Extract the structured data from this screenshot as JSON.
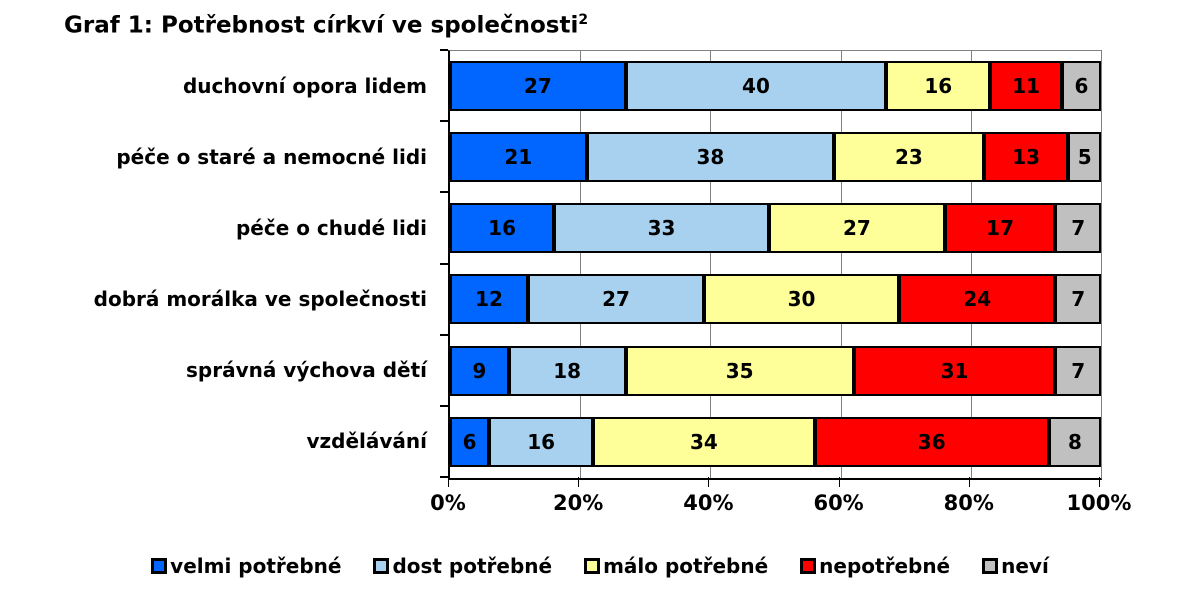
{
  "title": {
    "text": "Graf 1: Potřebnost církví ve společnosti",
    "superscript": "2"
  },
  "chart_data": {
    "type": "bar",
    "orientation": "horizontal",
    "stacked": true,
    "unit": "%",
    "title": "Graf 1: Potřebnost církví ve společnosti",
    "categories": [
      "duchovní opora lidem",
      "péče o staré a nemocné lidi",
      "péče o chudé lidi",
      "dobrá morálka ve společnosti",
      "správná výchova dětí",
      "vzdělávání"
    ],
    "series": [
      {
        "name": "velmi potřebné",
        "color": "#0066FF",
        "values": [
          27,
          21,
          16,
          12,
          9,
          6
        ]
      },
      {
        "name": "dost potřebné",
        "color": "#A8D1F0",
        "values": [
          40,
          38,
          33,
          27,
          18,
          16
        ]
      },
      {
        "name": "málo potřebné",
        "color": "#FFFF99",
        "values": [
          16,
          23,
          27,
          30,
          35,
          34
        ]
      },
      {
        "name": "nepotřebné",
        "color": "#FF0000",
        "values": [
          11,
          13,
          17,
          24,
          31,
          36
        ]
      },
      {
        "name": "neví",
        "color": "#C0C0C0",
        "values": [
          6,
          5,
          7,
          7,
          7,
          8
        ]
      }
    ],
    "x_ticks": [
      "0%",
      "20%",
      "40%",
      "60%",
      "80%",
      "100%"
    ],
    "xlim": [
      0,
      100
    ],
    "gridlines_percent": [
      20,
      40,
      60,
      80
    ],
    "grid": true,
    "legend_position": "bottom",
    "colors": {
      "grid_line": "#808080",
      "axis_line": "#000000",
      "bar_border": "#000000",
      "background": "#FFFFFF"
    }
  }
}
